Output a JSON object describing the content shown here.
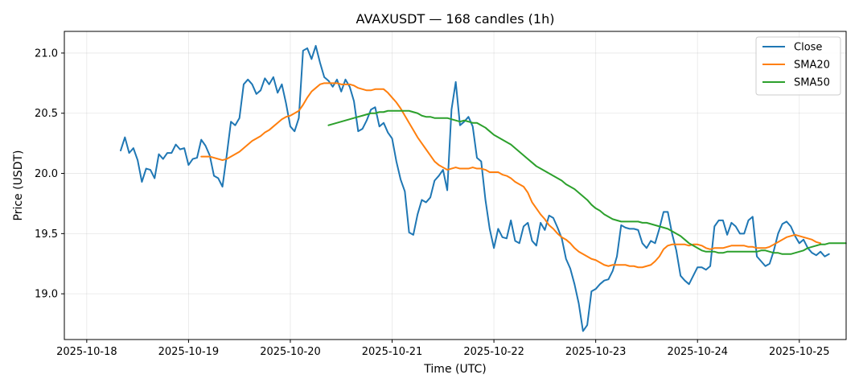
{
  "chart_data": {
    "type": "line",
    "title": "AVAXUSDT — 168 candles (1h)",
    "xlabel": "Time (UTC)",
    "ylabel": "Price (USDT)",
    "x_ticks": [
      "2025-10-18",
      "2025-10-19",
      "2025-10-20",
      "2025-10-21",
      "2025-10-22",
      "2025-10-23",
      "2025-10-24",
      "2025-10-25"
    ],
    "y_ticks": [
      "19.0",
      "19.5",
      "20.0",
      "20.5",
      "21.0"
    ],
    "xlim_days": [
      -0.22,
      7.46
    ],
    "ylim": [
      18.62,
      21.18
    ],
    "grid": true,
    "legend_position": "top-right",
    "series": [
      {
        "name": "Close",
        "color": "#1f77b4",
        "start_hour": 8,
        "values": [
          20.19,
          20.3,
          20.17,
          20.21,
          20.11,
          19.93,
          20.04,
          20.03,
          19.96,
          20.16,
          20.12,
          20.17,
          20.17,
          20.24,
          20.2,
          20.21,
          20.07,
          20.12,
          20.13,
          20.28,
          20.23,
          20.15,
          19.98,
          19.96,
          19.89,
          20.15,
          20.43,
          20.4,
          20.46,
          20.74,
          20.78,
          20.74,
          20.66,
          20.69,
          20.79,
          20.74,
          20.8,
          20.67,
          20.74,
          20.58,
          20.39,
          20.35,
          20.46,
          21.02,
          21.04,
          20.95,
          21.06,
          20.92,
          20.8,
          20.77,
          20.72,
          20.78,
          20.68,
          20.78,
          20.72,
          20.6,
          20.35,
          20.37,
          20.44,
          20.53,
          20.55,
          20.39,
          20.42,
          20.34,
          20.29,
          20.1,
          19.95,
          19.85,
          19.51,
          19.49,
          19.66,
          19.78,
          19.76,
          19.8,
          19.94,
          19.98,
          20.03,
          19.86,
          20.53,
          20.76,
          20.4,
          20.43,
          20.47,
          20.39,
          20.13,
          20.1,
          19.78,
          19.54,
          19.38,
          19.54,
          19.47,
          19.46,
          19.61,
          19.44,
          19.42,
          19.56,
          19.59,
          19.44,
          19.4,
          19.59,
          19.53,
          19.65,
          19.63,
          19.55,
          19.46,
          19.29,
          19.21,
          19.08,
          18.92,
          18.69,
          18.74,
          19.02,
          19.04,
          19.08,
          19.11,
          19.12,
          19.19,
          19.31,
          19.57,
          19.55,
          19.54,
          19.54,
          19.53,
          19.42,
          19.38,
          19.44,
          19.42,
          19.54,
          19.68,
          19.68,
          19.5,
          19.36,
          19.15,
          19.11,
          19.08,
          19.15,
          19.22,
          19.22,
          19.2,
          19.23,
          19.56,
          19.61,
          19.61,
          19.49,
          19.59,
          19.56,
          19.5,
          19.5,
          19.61,
          19.64,
          19.31,
          19.27,
          19.23,
          19.25,
          19.36,
          19.5,
          19.58,
          19.6,
          19.56,
          19.48,
          19.42,
          19.45,
          19.38,
          19.34,
          19.32,
          19.35,
          19.31,
          19.33
        ]
      },
      {
        "name": "SMA20",
        "color": "#ff7f0e",
        "start_hour": 27,
        "values": [
          20.14,
          20.14,
          20.14,
          20.13,
          20.12,
          20.11,
          20.12,
          20.14,
          20.16,
          20.18,
          20.21,
          20.24,
          20.27,
          20.29,
          20.31,
          20.34,
          20.36,
          20.39,
          20.42,
          20.45,
          20.47,
          20.48,
          20.5,
          20.52,
          20.57,
          20.63,
          20.68,
          20.71,
          20.74,
          20.75,
          20.75,
          20.75,
          20.75,
          20.74,
          20.74,
          20.74,
          20.73,
          20.71,
          20.7,
          20.69,
          20.69,
          20.7,
          20.7,
          20.7,
          20.67,
          20.63,
          20.59,
          20.54,
          20.48,
          20.42,
          20.36,
          20.3,
          20.25,
          20.2,
          20.15,
          20.1,
          20.07,
          20.05,
          20.03,
          20.04,
          20.05,
          20.04,
          20.04,
          20.04,
          20.05,
          20.04,
          20.04,
          20.03,
          20.01,
          20.01,
          20.01,
          19.99,
          19.98,
          19.96,
          19.93,
          19.91,
          19.89,
          19.84,
          19.76,
          19.71,
          19.66,
          19.62,
          19.57,
          19.54,
          19.5,
          19.47,
          19.45,
          19.42,
          19.38,
          19.35,
          19.33,
          19.31,
          19.29,
          19.28,
          19.26,
          19.24,
          19.23,
          19.24,
          19.24,
          19.24,
          19.24,
          19.23,
          19.23,
          19.22,
          19.22,
          19.23,
          19.24,
          19.27,
          19.31,
          19.37,
          19.4,
          19.41,
          19.41,
          19.41,
          19.41,
          19.4,
          19.41,
          19.41,
          19.4,
          19.38,
          19.37,
          19.38,
          19.38,
          19.38,
          19.39,
          19.4,
          19.4,
          19.4,
          19.4,
          19.39,
          19.39,
          19.38,
          19.38,
          19.38,
          19.39,
          19.41,
          19.43,
          19.45,
          19.47,
          19.48,
          19.49,
          19.48,
          19.47,
          19.46,
          19.45,
          19.43,
          19.42
        ]
      },
      {
        "name": "SMA50",
        "color": "#2ca02c",
        "start_hour": 57,
        "values": [
          20.4,
          20.41,
          20.42,
          20.43,
          20.44,
          20.45,
          20.46,
          20.47,
          20.48,
          20.49,
          20.5,
          20.5,
          20.51,
          20.51,
          20.52,
          20.52,
          20.52,
          20.52,
          20.52,
          20.52,
          20.51,
          20.5,
          20.48,
          20.47,
          20.47,
          20.46,
          20.46,
          20.46,
          20.46,
          20.45,
          20.44,
          20.43,
          20.44,
          20.43,
          20.42,
          20.42,
          20.4,
          20.38,
          20.35,
          20.32,
          20.3,
          20.28,
          20.26,
          20.24,
          20.21,
          20.18,
          20.15,
          20.12,
          20.09,
          20.06,
          20.04,
          20.02,
          20.0,
          19.98,
          19.96,
          19.94,
          19.91,
          19.89,
          19.87,
          19.84,
          19.81,
          19.78,
          19.74,
          19.71,
          19.69,
          19.66,
          19.64,
          19.62,
          19.61,
          19.6,
          19.6,
          19.6,
          19.6,
          19.6,
          19.59,
          19.59,
          19.58,
          19.57,
          19.56,
          19.55,
          19.54,
          19.52,
          19.5,
          19.48,
          19.45,
          19.42,
          19.4,
          19.38,
          19.36,
          19.35,
          19.35,
          19.35,
          19.34,
          19.34,
          19.35,
          19.35,
          19.35,
          19.35,
          19.35,
          19.35,
          19.35,
          19.35,
          19.36,
          19.36,
          19.35,
          19.34,
          19.34,
          19.33,
          19.33,
          19.33,
          19.34,
          19.35,
          19.36,
          19.38,
          19.39,
          19.4,
          19.41,
          19.41,
          19.42,
          19.42,
          19.42,
          19.42,
          19.42
        ]
      }
    ]
  }
}
